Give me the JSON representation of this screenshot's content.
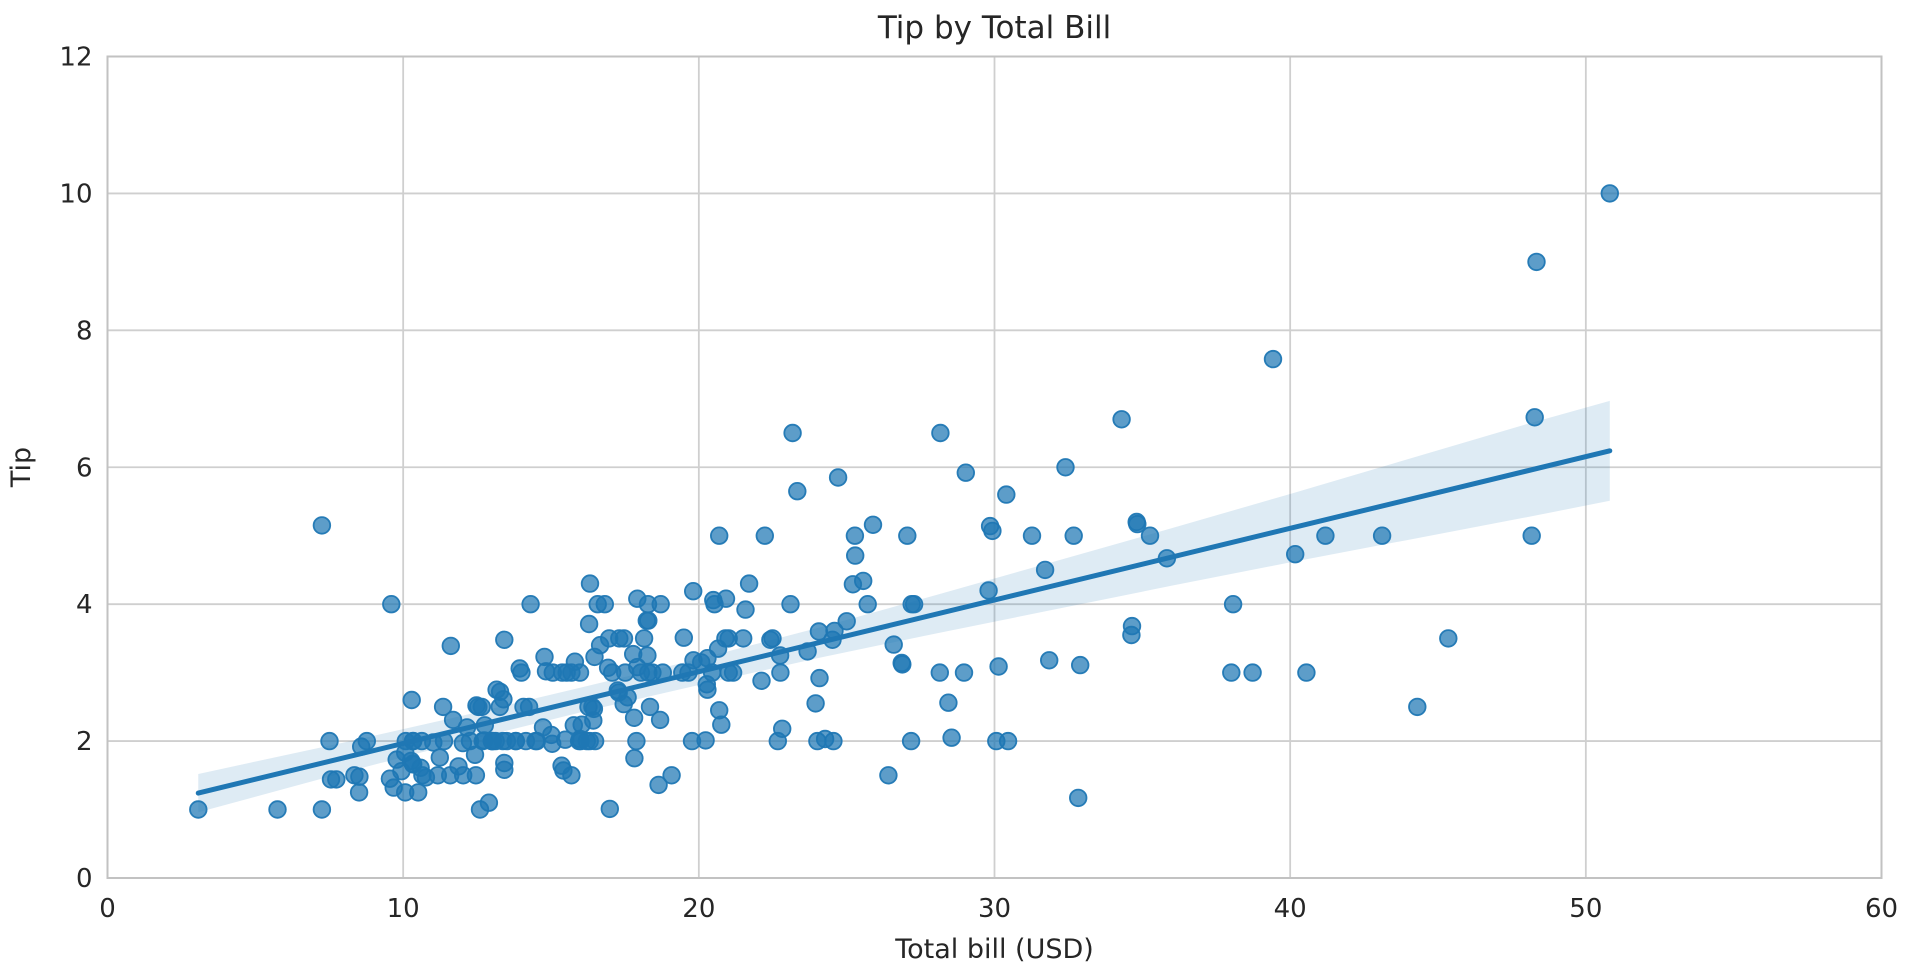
{
  "figure": {
    "background": "#ffffff"
  },
  "chart_data": {
    "type": "scatter",
    "title": "Tip by Total Bill",
    "xlabel": "Total bill (USD)",
    "ylabel": "Tip",
    "xlim": [
      0,
      60
    ],
    "ylim": [
      0,
      12
    ],
    "xticks": [
      0,
      10,
      20,
      30,
      40,
      50,
      60
    ],
    "yticks": [
      0,
      2,
      4,
      6,
      8,
      10,
      12
    ],
    "grid": true,
    "legend": null,
    "colors": {
      "marker": "#1f77b4",
      "marker_edge": "#1f77b4",
      "regression_line": "#1f77b4",
      "ci_band": "#1f77b4",
      "gridline": "#cfcfcf",
      "spine": "#c2c2c2",
      "text": "#262626"
    },
    "marker_fill_opacity": 0.72,
    "ci_band_opacity": 0.15,
    "regression": {
      "x1": 3.07,
      "y1": 1.24,
      "x2": 50.81,
      "y2": 6.24
    },
    "ci_band": {
      "x": [
        3.07,
        8.0,
        12.0,
        16.0,
        20.0,
        24.0,
        28.0,
        32.0,
        36.0,
        40.0,
        44.0,
        48.0,
        50.81
      ],
      "upper": [
        1.52,
        1.98,
        2.37,
        2.78,
        3.2,
        3.65,
        4.13,
        4.62,
        5.11,
        5.61,
        6.12,
        6.63,
        6.97
      ],
      "lower": [
        0.96,
        1.54,
        1.99,
        2.42,
        2.82,
        3.21,
        3.57,
        3.92,
        4.27,
        4.61,
        4.94,
        5.27,
        5.51
      ]
    },
    "points": [
      [
        16.99,
        1.01
      ],
      [
        10.34,
        1.66
      ],
      [
        21.01,
        3.5
      ],
      [
        23.68,
        3.31
      ],
      [
        24.59,
        3.61
      ],
      [
        25.29,
        4.71
      ],
      [
        8.77,
        2.0
      ],
      [
        26.88,
        3.12
      ],
      [
        15.04,
        1.96
      ],
      [
        14.78,
        3.23
      ],
      [
        10.27,
        1.71
      ],
      [
        35.26,
        5.0
      ],
      [
        15.42,
        1.57
      ],
      [
        18.43,
        3.0
      ],
      [
        14.83,
        3.02
      ],
      [
        21.58,
        3.92
      ],
      [
        10.33,
        1.67
      ],
      [
        16.29,
        3.71
      ],
      [
        16.97,
        3.5
      ],
      [
        20.65,
        3.35
      ],
      [
        17.92,
        4.08
      ],
      [
        20.29,
        2.75
      ],
      [
        15.77,
        2.23
      ],
      [
        39.42,
        7.58
      ],
      [
        19.82,
        3.18
      ],
      [
        17.81,
        2.34
      ],
      [
        13.37,
        2.0
      ],
      [
        12.69,
        2.0
      ],
      [
        21.7,
        4.3
      ],
      [
        19.65,
        3.0
      ],
      [
        9.55,
        1.45
      ],
      [
        18.35,
        2.5
      ],
      [
        15.06,
        3.0
      ],
      [
        20.69,
        2.45
      ],
      [
        17.78,
        3.27
      ],
      [
        24.06,
        3.6
      ],
      [
        16.31,
        2.0
      ],
      [
        16.93,
        3.07
      ],
      [
        18.69,
        2.31
      ],
      [
        31.27,
        5.0
      ],
      [
        16.04,
        2.24
      ],
      [
        17.46,
        2.54
      ],
      [
        13.94,
        3.06
      ],
      [
        9.68,
        1.32
      ],
      [
        30.4,
        5.6
      ],
      [
        18.29,
        3.0
      ],
      [
        22.23,
        5.0
      ],
      [
        32.4,
        6.0
      ],
      [
        28.55,
        2.05
      ],
      [
        18.04,
        3.0
      ],
      [
        12.54,
        2.5
      ],
      [
        10.29,
        2.6
      ],
      [
        34.81,
        5.2
      ],
      [
        9.94,
        1.56
      ],
      [
        25.56,
        4.34
      ],
      [
        19.49,
        3.51
      ],
      [
        38.01,
        3.0
      ],
      [
        26.41,
        1.5
      ],
      [
        11.24,
        1.76
      ],
      [
        48.27,
        6.73
      ],
      [
        20.29,
        3.21
      ],
      [
        13.81,
        2.0
      ],
      [
        11.02,
        1.98
      ],
      [
        18.29,
        3.76
      ],
      [
        17.59,
        2.64
      ],
      [
        20.08,
        3.15
      ],
      [
        16.45,
        2.47
      ],
      [
        3.07,
        1.0
      ],
      [
        20.23,
        2.01
      ],
      [
        15.01,
        2.09
      ],
      [
        12.02,
        1.97
      ],
      [
        17.07,
        3.0
      ],
      [
        26.86,
        3.14
      ],
      [
        25.28,
        5.0
      ],
      [
        14.73,
        2.2
      ],
      [
        10.51,
        1.25
      ],
      [
        17.92,
        3.08
      ],
      [
        27.2,
        4.0
      ],
      [
        22.76,
        3.0
      ],
      [
        17.29,
        2.71
      ],
      [
        19.44,
        3.0
      ],
      [
        16.66,
        3.4
      ],
      [
        10.07,
        1.83
      ],
      [
        32.68,
        5.0
      ],
      [
        15.98,
        2.03
      ],
      [
        34.83,
        5.17
      ],
      [
        13.03,
        2.0
      ],
      [
        18.28,
        4.0
      ],
      [
        24.71,
        5.85
      ],
      [
        21.16,
        3.0
      ],
      [
        28.97,
        3.0
      ],
      [
        22.49,
        3.5
      ],
      [
        5.75,
        1.0
      ],
      [
        16.32,
        4.3
      ],
      [
        22.75,
        3.25
      ],
      [
        40.17,
        4.73
      ],
      [
        27.28,
        4.0
      ],
      [
        12.03,
        1.5
      ],
      [
        21.01,
        3.0
      ],
      [
        12.46,
        1.5
      ],
      [
        11.35,
        2.5
      ],
      [
        15.38,
        3.0
      ],
      [
        44.3,
        2.5
      ],
      [
        22.42,
        3.48
      ],
      [
        20.92,
        4.08
      ],
      [
        15.36,
        1.64
      ],
      [
        20.49,
        4.06
      ],
      [
        25.21,
        4.29
      ],
      [
        18.24,
        3.76
      ],
      [
        14.31,
        4.0
      ],
      [
        14.0,
        3.0
      ],
      [
        7.25,
        1.0
      ],
      [
        38.07,
        4.0
      ],
      [
        23.95,
        2.55
      ],
      [
        25.71,
        4.0
      ],
      [
        17.31,
        3.5
      ],
      [
        29.93,
        5.07
      ],
      [
        10.65,
        1.5
      ],
      [
        12.43,
        1.8
      ],
      [
        24.08,
        2.92
      ],
      [
        11.69,
        2.31
      ],
      [
        13.42,
        1.68
      ],
      [
        14.26,
        2.5
      ],
      [
        15.95,
        2.0
      ],
      [
        12.48,
        2.52
      ],
      [
        29.8,
        4.2
      ],
      [
        8.52,
        1.48
      ],
      [
        14.52,
        2.0
      ],
      [
        11.38,
        2.0
      ],
      [
        22.82,
        2.18
      ],
      [
        19.08,
        1.5
      ],
      [
        20.27,
        2.83
      ],
      [
        11.17,
        1.5
      ],
      [
        12.26,
        2.0
      ],
      [
        18.26,
        3.25
      ],
      [
        8.51,
        1.25
      ],
      [
        10.33,
        2.0
      ],
      [
        14.15,
        2.0
      ],
      [
        16.0,
        2.0
      ],
      [
        13.16,
        2.75
      ],
      [
        17.47,
        3.5
      ],
      [
        34.3,
        6.7
      ],
      [
        41.19,
        5.0
      ],
      [
        27.05,
        5.0
      ],
      [
        16.43,
        2.3
      ],
      [
        8.35,
        1.5
      ],
      [
        18.64,
        1.36
      ],
      [
        11.87,
        1.63
      ],
      [
        9.78,
        1.73
      ],
      [
        7.51,
        2.0
      ],
      [
        14.07,
        2.5
      ],
      [
        13.13,
        2.0
      ],
      [
        17.26,
        2.74
      ],
      [
        24.55,
        2.0
      ],
      [
        19.77,
        2.0
      ],
      [
        29.85,
        5.14
      ],
      [
        48.17,
        5.0
      ],
      [
        25.0,
        3.75
      ],
      [
        13.39,
        2.61
      ],
      [
        16.49,
        2.0
      ],
      [
        21.5,
        3.5
      ],
      [
        12.66,
        2.5
      ],
      [
        16.21,
        2.0
      ],
      [
        13.81,
        2.0
      ],
      [
        17.51,
        3.0
      ],
      [
        24.52,
        3.48
      ],
      [
        20.76,
        2.24
      ],
      [
        31.71,
        4.5
      ],
      [
        10.59,
        1.61
      ],
      [
        10.63,
        2.0
      ],
      [
        50.81,
        10.0
      ],
      [
        15.81,
        3.16
      ],
      [
        7.25,
        5.15
      ],
      [
        31.85,
        3.18
      ],
      [
        16.82,
        4.0
      ],
      [
        32.9,
        3.11
      ],
      [
        17.89,
        2.0
      ],
      [
        14.48,
        2.0
      ],
      [
        9.6,
        4.0
      ],
      [
        34.63,
        3.55
      ],
      [
        34.65,
        3.68
      ],
      [
        23.33,
        5.65
      ],
      [
        45.35,
        3.5
      ],
      [
        23.17,
        6.5
      ],
      [
        40.55,
        3.0
      ],
      [
        20.69,
        5.0
      ],
      [
        20.9,
        3.5
      ],
      [
        30.46,
        2.0
      ],
      [
        18.15,
        3.5
      ],
      [
        23.1,
        4.0
      ],
      [
        15.69,
        1.5
      ],
      [
        19.81,
        4.19
      ],
      [
        28.44,
        2.56
      ],
      [
        15.48,
        2.02
      ],
      [
        16.58,
        4.0
      ],
      [
        7.56,
        1.44
      ],
      [
        10.34,
        2.0
      ],
      [
        43.11,
        5.0
      ],
      [
        13.0,
        2.0
      ],
      [
        13.51,
        2.0
      ],
      [
        18.71,
        4.0
      ],
      [
        12.74,
        2.01
      ],
      [
        13.0,
        2.0
      ],
      [
        16.4,
        2.5
      ],
      [
        20.53,
        4.0
      ],
      [
        16.47,
        3.23
      ],
      [
        26.59,
        3.41
      ],
      [
        38.73,
        3.0
      ],
      [
        24.27,
        2.03
      ],
      [
        12.76,
        2.23
      ],
      [
        30.06,
        2.0
      ],
      [
        25.89,
        5.16
      ],
      [
        48.33,
        9.0
      ],
      [
        13.27,
        2.5
      ],
      [
        28.17,
        6.5
      ],
      [
        12.9,
        1.1
      ],
      [
        28.15,
        3.0
      ],
      [
        11.59,
        1.5
      ],
      [
        7.74,
        1.44
      ],
      [
        30.14,
        3.09
      ],
      [
        12.16,
        2.2
      ],
      [
        13.42,
        3.48
      ],
      [
        8.58,
        1.92
      ],
      [
        15.98,
        3.0
      ],
      [
        13.42,
        1.58
      ],
      [
        16.27,
        2.5
      ],
      [
        10.09,
        2.0
      ],
      [
        20.45,
        3.0
      ],
      [
        13.28,
        2.72
      ],
      [
        22.12,
        2.88
      ],
      [
        24.01,
        2.0
      ],
      [
        15.69,
        3.0
      ],
      [
        11.61,
        3.39
      ],
      [
        10.77,
        1.47
      ],
      [
        15.53,
        3.0
      ],
      [
        10.07,
        1.25
      ],
      [
        12.6,
        1.0
      ],
      [
        32.83,
        1.17
      ],
      [
        35.83,
        4.67
      ],
      [
        29.03,
        5.92
      ],
      [
        27.18,
        2.0
      ],
      [
        22.67,
        2.0
      ],
      [
        17.82,
        1.75
      ],
      [
        18.78,
        3.0
      ]
    ]
  }
}
